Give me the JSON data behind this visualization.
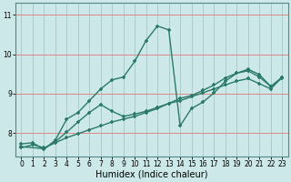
{
  "title": "",
  "xlabel": "Humidex (Indice chaleur)",
  "background_color": "#cce8e8",
  "grid_color": "#aacccc",
  "red_line_color": "#dd8888",
  "line_color": "#2a7a6a",
  "xlim": [
    -0.5,
    23.5
  ],
  "ylim": [
    7.4,
    11.3
  ],
  "yticks": [
    8,
    9,
    10,
    11
  ],
  "ytick_labels": [
    "8",
    "9",
    "10",
    "11"
  ],
  "xticks": [
    0,
    1,
    2,
    3,
    4,
    5,
    6,
    7,
    8,
    9,
    10,
    11,
    12,
    13,
    14,
    15,
    16,
    17,
    18,
    19,
    20,
    21,
    22,
    23
  ],
  "line1_x": [
    0,
    1,
    2,
    3,
    4,
    5,
    6,
    7,
    8,
    9,
    10,
    11,
    12,
    13,
    14,
    15,
    16,
    17,
    18,
    19,
    20,
    21,
    22,
    23
  ],
  "line1_y": [
    7.72,
    7.75,
    7.58,
    7.82,
    8.35,
    8.52,
    8.82,
    9.12,
    9.35,
    9.42,
    9.82,
    10.35,
    10.72,
    10.62,
    8.18,
    8.62,
    8.78,
    9.02,
    9.32,
    9.52,
    9.62,
    9.48,
    9.18,
    9.42
  ],
  "line2_x": [
    0,
    1,
    2,
    3,
    4,
    5,
    6,
    7,
    8,
    9,
    10,
    11,
    12,
    13,
    14,
    15,
    16,
    17,
    18,
    19,
    20,
    21,
    22,
    23
  ],
  "line2_y": [
    7.62,
    7.7,
    7.62,
    7.75,
    7.88,
    7.98,
    8.08,
    8.18,
    8.28,
    8.35,
    8.42,
    8.52,
    8.62,
    8.75,
    8.82,
    8.92,
    9.02,
    9.12,
    9.22,
    9.32,
    9.38,
    9.25,
    9.12,
    9.42
  ],
  "line3_x": [
    0,
    2,
    3,
    4,
    5,
    6,
    7,
    8,
    9,
    10,
    11,
    12,
    13,
    14,
    15,
    16,
    17,
    18,
    19,
    20,
    21,
    22,
    23
  ],
  "line3_y": [
    7.65,
    7.6,
    7.78,
    8.02,
    8.28,
    8.52,
    8.72,
    8.55,
    8.42,
    8.48,
    8.55,
    8.65,
    8.75,
    8.88,
    8.95,
    9.08,
    9.22,
    9.4,
    9.52,
    9.58,
    9.42,
    9.18,
    9.4
  ],
  "xlabel_fontsize": 7,
  "tick_fontsize": 5.5,
  "lw": 1.0,
  "ms": 3.5
}
